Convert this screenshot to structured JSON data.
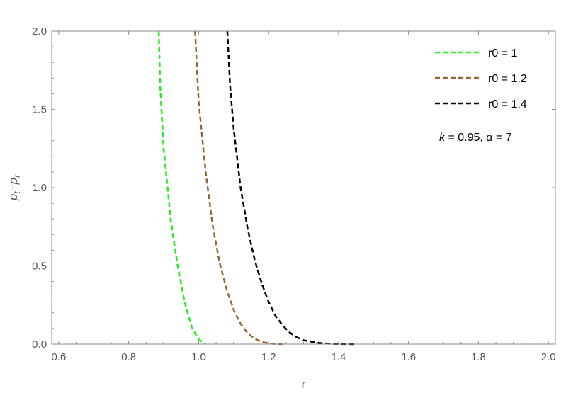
{
  "chart_data": {
    "type": "line",
    "xlabel": "r",
    "ylabel": "p_t − p_r",
    "xlim": [
      0.58,
      2.02
    ],
    "ylim": [
      0,
      2.0
    ],
    "x_ticks": [
      0.6,
      0.8,
      1.0,
      1.2,
      1.4,
      1.6,
      1.8,
      2.0
    ],
    "x_tick_labels": [
      "0.6",
      "0.8",
      "1.0",
      "1.2",
      "1.4",
      "1.6",
      "1.8",
      "2.0"
    ],
    "y_ticks": [
      0.0,
      0.5,
      1.0,
      1.5,
      2.0
    ],
    "y_tick_labels": [
      "0.0",
      "0.5",
      "1.0",
      "1.5",
      "2.0"
    ],
    "grid": false,
    "legend_position": "top-right",
    "annotation": "k = 0.95,  α = 7",
    "series": [
      {
        "name": "r0 = 1",
        "color": "#22EE22",
        "style": "dashed",
        "x": [
          0.886,
          0.89,
          0.9,
          0.92,
          0.94,
          0.96,
          0.98,
          1.0,
          1.02
        ],
        "y": [
          2.0,
          1.65,
          1.25,
          0.8,
          0.5,
          0.27,
          0.11,
          0.03,
          0.0
        ]
      },
      {
        "name": "r0 = 1.2",
        "color": "#996633",
        "style": "dashed",
        "x": [
          0.99,
          1.0,
          1.02,
          1.04,
          1.06,
          1.08,
          1.1,
          1.12,
          1.14,
          1.16,
          1.18,
          1.2,
          1.22,
          1.24
        ],
        "y": [
          2.0,
          1.55,
          1.1,
          0.76,
          0.52,
          0.35,
          0.22,
          0.13,
          0.07,
          0.035,
          0.015,
          0.005,
          0.001,
          0.0
        ]
      },
      {
        "name": "r0 = 1.4",
        "color": "#000000",
        "style": "dashed",
        "x": [
          1.082,
          1.09,
          1.1,
          1.12,
          1.14,
          1.16,
          1.18,
          1.2,
          1.22,
          1.24,
          1.26,
          1.28,
          1.3,
          1.34,
          1.38,
          1.42,
          1.45
        ],
        "y": [
          2.0,
          1.65,
          1.38,
          1.0,
          0.74,
          0.54,
          0.39,
          0.27,
          0.18,
          0.12,
          0.075,
          0.045,
          0.025,
          0.008,
          0.002,
          0.0005,
          0.0
        ]
      }
    ]
  }
}
